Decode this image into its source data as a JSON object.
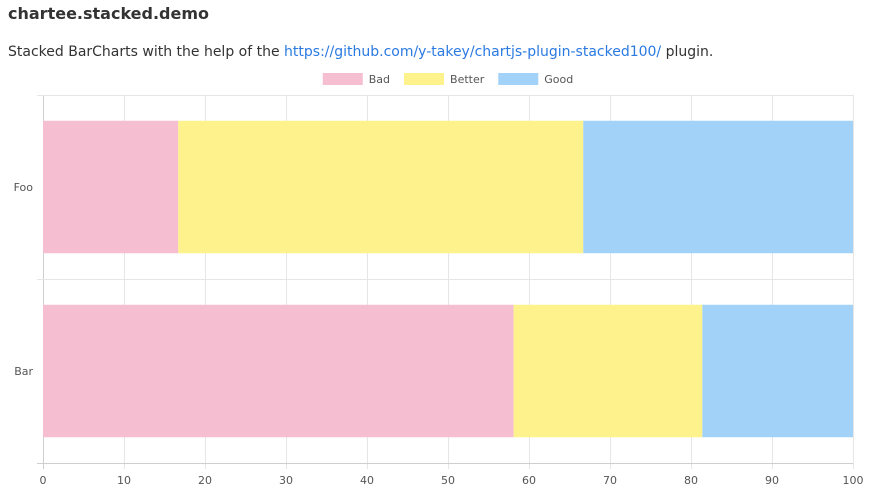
{
  "page": {
    "title": "chartee.stacked.demo",
    "description_prefix": "Stacked BarCharts with the help of the ",
    "link_text": "https://github.com/y-takey/chartjs-plugin-stacked100/",
    "description_suffix": " plugin."
  },
  "chart_data": {
    "type": "bar",
    "orientation": "horizontal",
    "stacked": true,
    "stacked_to_100_percent": true,
    "categories": [
      "Foo",
      "Bar"
    ],
    "series": [
      {
        "name": "Bad",
        "values": [
          16.7,
          58.1
        ],
        "color": "#f6bed1"
      },
      {
        "name": "Better",
        "values": [
          50.0,
          23.3
        ],
        "color": "#fef28d"
      },
      {
        "name": "Good",
        "values": [
          33.3,
          18.6
        ],
        "color": "#a3d2f8"
      }
    ],
    "xlim": [
      0,
      100
    ],
    "xticks": [
      "0",
      "10",
      "20",
      "30",
      "40",
      "50",
      "60",
      "70",
      "80",
      "90",
      "100"
    ],
    "grid": true,
    "legend_position": "top"
  }
}
